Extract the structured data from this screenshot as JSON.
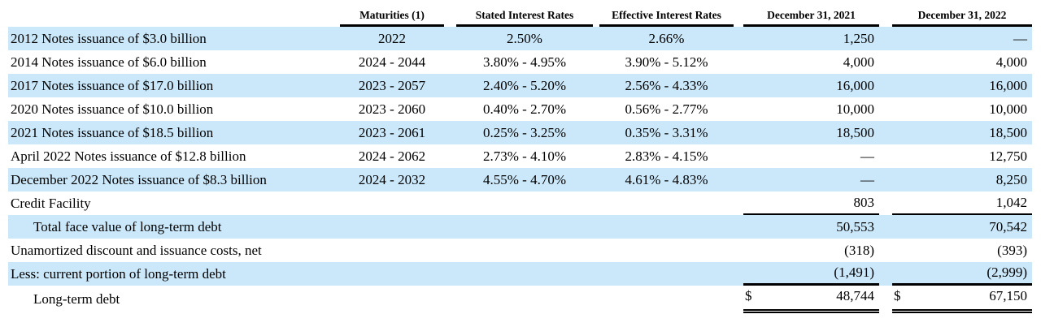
{
  "colors": {
    "row_highlight": "#cbe8fa",
    "rule": "#000000",
    "text": "#000000",
    "background": "#ffffff"
  },
  "table": {
    "headers": {
      "label": "",
      "maturities": "Maturities (1)",
      "stated": "Stated Interest Rates",
      "effective": "Effective Interest Rates",
      "dec2021": "December 31, 2021",
      "dec2022": "December 31, 2022"
    },
    "rows": [
      {
        "label": "2012 Notes issuance of $3.0 billion",
        "maturities": "2022",
        "stated": "2.50%",
        "effective": "2.66%",
        "cur2021": "",
        "dec2021": "1,250",
        "cur2022": "",
        "dec2022": "—",
        "shaded": true,
        "indent": false,
        "rule_below": ""
      },
      {
        "label": "2014 Notes issuance of $6.0 billion",
        "maturities": "2024 - 2044",
        "stated": "3.80% - 4.95%",
        "effective": "3.90% - 5.12%",
        "cur2021": "",
        "dec2021": "4,000",
        "cur2022": "",
        "dec2022": "4,000",
        "shaded": false,
        "indent": false,
        "rule_below": ""
      },
      {
        "label": "2017 Notes issuance of $17.0 billion",
        "maturities": "2023 - 2057",
        "stated": "2.40% - 5.20%",
        "effective": "2.56% - 4.33%",
        "cur2021": "",
        "dec2021": "16,000",
        "cur2022": "",
        "dec2022": "16,000",
        "shaded": true,
        "indent": false,
        "rule_below": ""
      },
      {
        "label": "2020 Notes issuance of $10.0 billion",
        "maturities": "2023 - 2060",
        "stated": "0.40% - 2.70%",
        "effective": "0.56% - 2.77%",
        "cur2021": "",
        "dec2021": "10,000",
        "cur2022": "",
        "dec2022": "10,000",
        "shaded": false,
        "indent": false,
        "rule_below": ""
      },
      {
        "label": "2021 Notes issuance of $18.5 billion",
        "maturities": "2023 - 2061",
        "stated": "0.25% - 3.25%",
        "effective": "0.35% - 3.31%",
        "cur2021": "",
        "dec2021": "18,500",
        "cur2022": "",
        "dec2022": "18,500",
        "shaded": true,
        "indent": false,
        "rule_below": ""
      },
      {
        "label": "April 2022 Notes issuance of $12.8 billion",
        "maturities": "2024 - 2062",
        "stated": "2.73% - 4.10%",
        "effective": "2.83% - 4.15%",
        "cur2021": "",
        "dec2021": "—",
        "cur2022": "",
        "dec2022": "12,750",
        "shaded": false,
        "indent": false,
        "rule_below": ""
      },
      {
        "label": "December 2022 Notes issuance of $8.3 billion",
        "maturities": "2024 - 2032",
        "stated": "4.55% - 4.70%",
        "effective": "4.61% - 4.83%",
        "cur2021": "",
        "dec2021": "—",
        "cur2022": "",
        "dec2022": "8,250",
        "shaded": true,
        "indent": false,
        "rule_below": ""
      },
      {
        "label": "Credit Facility",
        "maturities": "",
        "stated": "",
        "effective": "",
        "cur2021": "",
        "dec2021": "803",
        "cur2022": "",
        "dec2022": "1,042",
        "shaded": false,
        "indent": false,
        "rule_below": "single"
      },
      {
        "label": "Total face value of long-term debt",
        "maturities": "",
        "stated": "",
        "effective": "",
        "cur2021": "",
        "dec2021": "50,553",
        "cur2022": "",
        "dec2022": "70,542",
        "shaded": true,
        "indent": true,
        "rule_below": ""
      },
      {
        "label": "Unamortized discount and issuance costs, net",
        "maturities": "",
        "stated": "",
        "effective": "",
        "cur2021": "",
        "dec2021": "(318)",
        "cur2022": "",
        "dec2022": "(393)",
        "shaded": false,
        "indent": false,
        "rule_below": ""
      },
      {
        "label": "Less: current portion of long-term debt",
        "maturities": "",
        "stated": "",
        "effective": "",
        "cur2021": "",
        "dec2021": "(1,491)",
        "cur2022": "",
        "dec2022": "(2,999)",
        "shaded": true,
        "indent": false,
        "rule_below": "thick"
      },
      {
        "label": "Long-term debt",
        "maturities": "",
        "stated": "",
        "effective": "",
        "cur2021": "$",
        "dec2021": "48,744",
        "cur2022": "$",
        "dec2022": "67,150",
        "shaded": false,
        "indent": true,
        "rule_below": "double"
      }
    ]
  }
}
